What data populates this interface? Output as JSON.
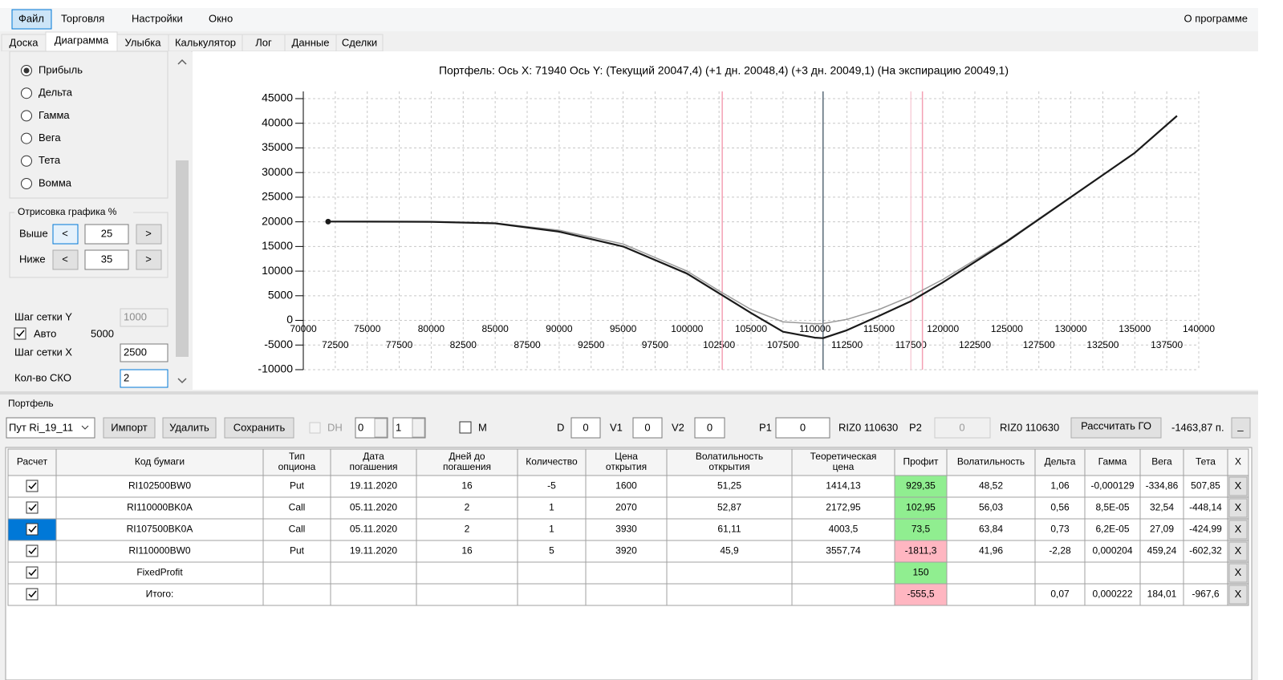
{
  "menu": {
    "items": [
      "Файл",
      "Торговля",
      "Настройки",
      "Окно"
    ],
    "active": 0,
    "about": "О программе"
  },
  "tabs": {
    "items": [
      "Доска",
      "Диаграмма",
      "Улыбка",
      "Калькулятор",
      "Лог",
      "Данные",
      "Сделки"
    ],
    "active": 1
  },
  "left_panel": {
    "radio": {
      "options": [
        "Прибыль",
        "Дельта",
        "Гамма",
        "Вега",
        "Тета",
        "Вомма"
      ],
      "selected": 0
    },
    "draw_group": {
      "title": "Отрисовка графика %",
      "above_label": "Выше",
      "above": "25",
      "below_label": "Ниже",
      "below": "35",
      "prev": "<",
      "next": ">"
    },
    "grid_y_label": "Шаг сетки Y",
    "grid_y": "1000",
    "auto_label": "Авто",
    "auto_value": "5000",
    "grid_x_label": "Шаг сетки X",
    "grid_x": "2500",
    "sko_label": "Кол-во СКО",
    "sko": "2"
  },
  "chart_data": {
    "type": "line",
    "title": "Портфель: Ось X: 71940 Ось Y:  (Текущий 20047,4)  (+1 дн. 20048,4)  (+3 дн. 20049,1)  (На экспирацию 20049,1)",
    "x": [
      71940,
      75000,
      80000,
      85000,
      90000,
      95000,
      100000,
      102500,
      105000,
      107500,
      110000,
      110630,
      112500,
      115000,
      117500,
      120000,
      125000,
      130000,
      135000,
      138300
    ],
    "series": [
      {
        "color": "#1a1a1a",
        "width": 2.2,
        "values": [
          20047,
          20040,
          20000,
          19700,
          18000,
          15000,
          9500,
          5500,
          1500,
          -2300,
          -3500,
          -3600,
          -2000,
          900,
          3900,
          7700,
          16000,
          25000,
          34000,
          41500
        ]
      },
      {
        "color": "#9a9a9a",
        "width": 1.5,
        "values": [
          20047,
          20040,
          20000,
          19750,
          18300,
          15500,
          10000,
          6000,
          2200,
          -300,
          -700,
          -650,
          200,
          2200,
          4900,
          8300,
          16200,
          25100,
          34000,
          41500
        ]
      }
    ],
    "markers": [
      {
        "value": 102750,
        "color": "#f4a0b4"
      },
      {
        "value": 117500,
        "color": "#f8d0da"
      },
      {
        "value": 118400,
        "color": "#f4a0b4"
      },
      {
        "value": 110630,
        "color": "#5a6a78"
      }
    ],
    "xlim": [
      70000,
      140000
    ],
    "ylim": [
      -10000,
      45000
    ],
    "xticks": [
      70000,
      72500,
      75000,
      77500,
      80000,
      82500,
      85000,
      87500,
      90000,
      92500,
      95000,
      97500,
      100000,
      102500,
      105000,
      107500,
      110000,
      112500,
      115000,
      117500,
      120000,
      122500,
      125000,
      127500,
      130000,
      132500,
      135000,
      137500,
      140000
    ],
    "yticks": [
      -10000,
      -5000,
      0,
      5000,
      10000,
      15000,
      20000,
      25000,
      30000,
      35000,
      40000,
      45000
    ],
    "grid": true
  },
  "portfolio": {
    "title": "Портфель",
    "toolbar": {
      "select": "Пут Ri_19_11",
      "buttons": [
        "Импорт",
        "Удалить",
        "Сохранить"
      ],
      "dh": "DH",
      "spin1": "0",
      "spin2": "1",
      "m": "M",
      "d_label": "D",
      "d": "0",
      "v1_label": "V1",
      "v1": "0",
      "v2_label": "V2",
      "v2": "0",
      "p1_label": "P1",
      "p1": "0",
      "p1_instrument": "RIZ0 110630",
      "p2_label": "P2",
      "p2": "0",
      "p2_instrument": "RIZ0 110630",
      "calc": "Рассчитать ГО",
      "result": "-1463,87 п.",
      "minimize": "_"
    },
    "table": {
      "columns": [
        [
          "Расчет"
        ],
        [
          "Код бумаги"
        ],
        [
          "Тип",
          "опциона"
        ],
        [
          "Дата",
          "погашения"
        ],
        [
          "Дней до",
          "погашения"
        ],
        [
          "Количество"
        ],
        [
          "Цена",
          "открытия"
        ],
        [
          "Волатильность",
          "открытия"
        ],
        [
          "Теоретическая",
          "цена"
        ],
        [
          "Профит"
        ],
        [
          "Волатильность"
        ],
        [
          "Дельта"
        ],
        [
          "Гамма"
        ],
        [
          "Вега"
        ],
        [
          "Тета"
        ],
        [
          "X"
        ]
      ],
      "remove": "X",
      "selected_row": 2,
      "rows": [
        {
          "cells": [
            "RI102500BW0",
            "Put",
            "19.11.2020",
            "16",
            "-5",
            "1600",
            "51,25",
            "1414,13",
            "929,35",
            "48,52",
            "1,06",
            "-0,000129",
            "-334,86",
            "507,85"
          ],
          "profit_color": "#90ee90"
        },
        {
          "cells": [
            "RI110000BK0A",
            "Call",
            "05.11.2020",
            "2",
            "1",
            "2070",
            "52,87",
            "2172,95",
            "102,95",
            "56,03",
            "0,56",
            "8,5E-05",
            "32,54",
            "-448,14"
          ],
          "profit_color": "#90ee90"
        },
        {
          "cells": [
            "RI107500BK0A",
            "Call",
            "05.11.2020",
            "2",
            "1",
            "3930",
            "61,11",
            "4003,5",
            "73,5",
            "63,84",
            "0,73",
            "6,2E-05",
            "27,09",
            "-424,99"
          ],
          "profit_color": "#90ee90"
        },
        {
          "cells": [
            "RI110000BW0",
            "Put",
            "19.11.2020",
            "16",
            "5",
            "3920",
            "45,9",
            "3557,74",
            "-1811,3",
            "41,96",
            "-2,28",
            "0,000204",
            "459,24",
            "-602,32"
          ],
          "profit_color": "#ffb6c1"
        },
        {
          "cells": [
            "FixedProfit",
            null,
            null,
            null,
            null,
            null,
            null,
            null,
            "150",
            null,
            null,
            null,
            null,
            null
          ],
          "profit_color": "#90ee90"
        },
        {
          "cells": [
            "Итого:",
            null,
            null,
            null,
            null,
            null,
            null,
            null,
            "-555,5",
            null,
            "0,07",
            "0,000222",
            "184,01",
            "-967,6"
          ],
          "profit_color": "#ffb6c1"
        }
      ]
    }
  }
}
